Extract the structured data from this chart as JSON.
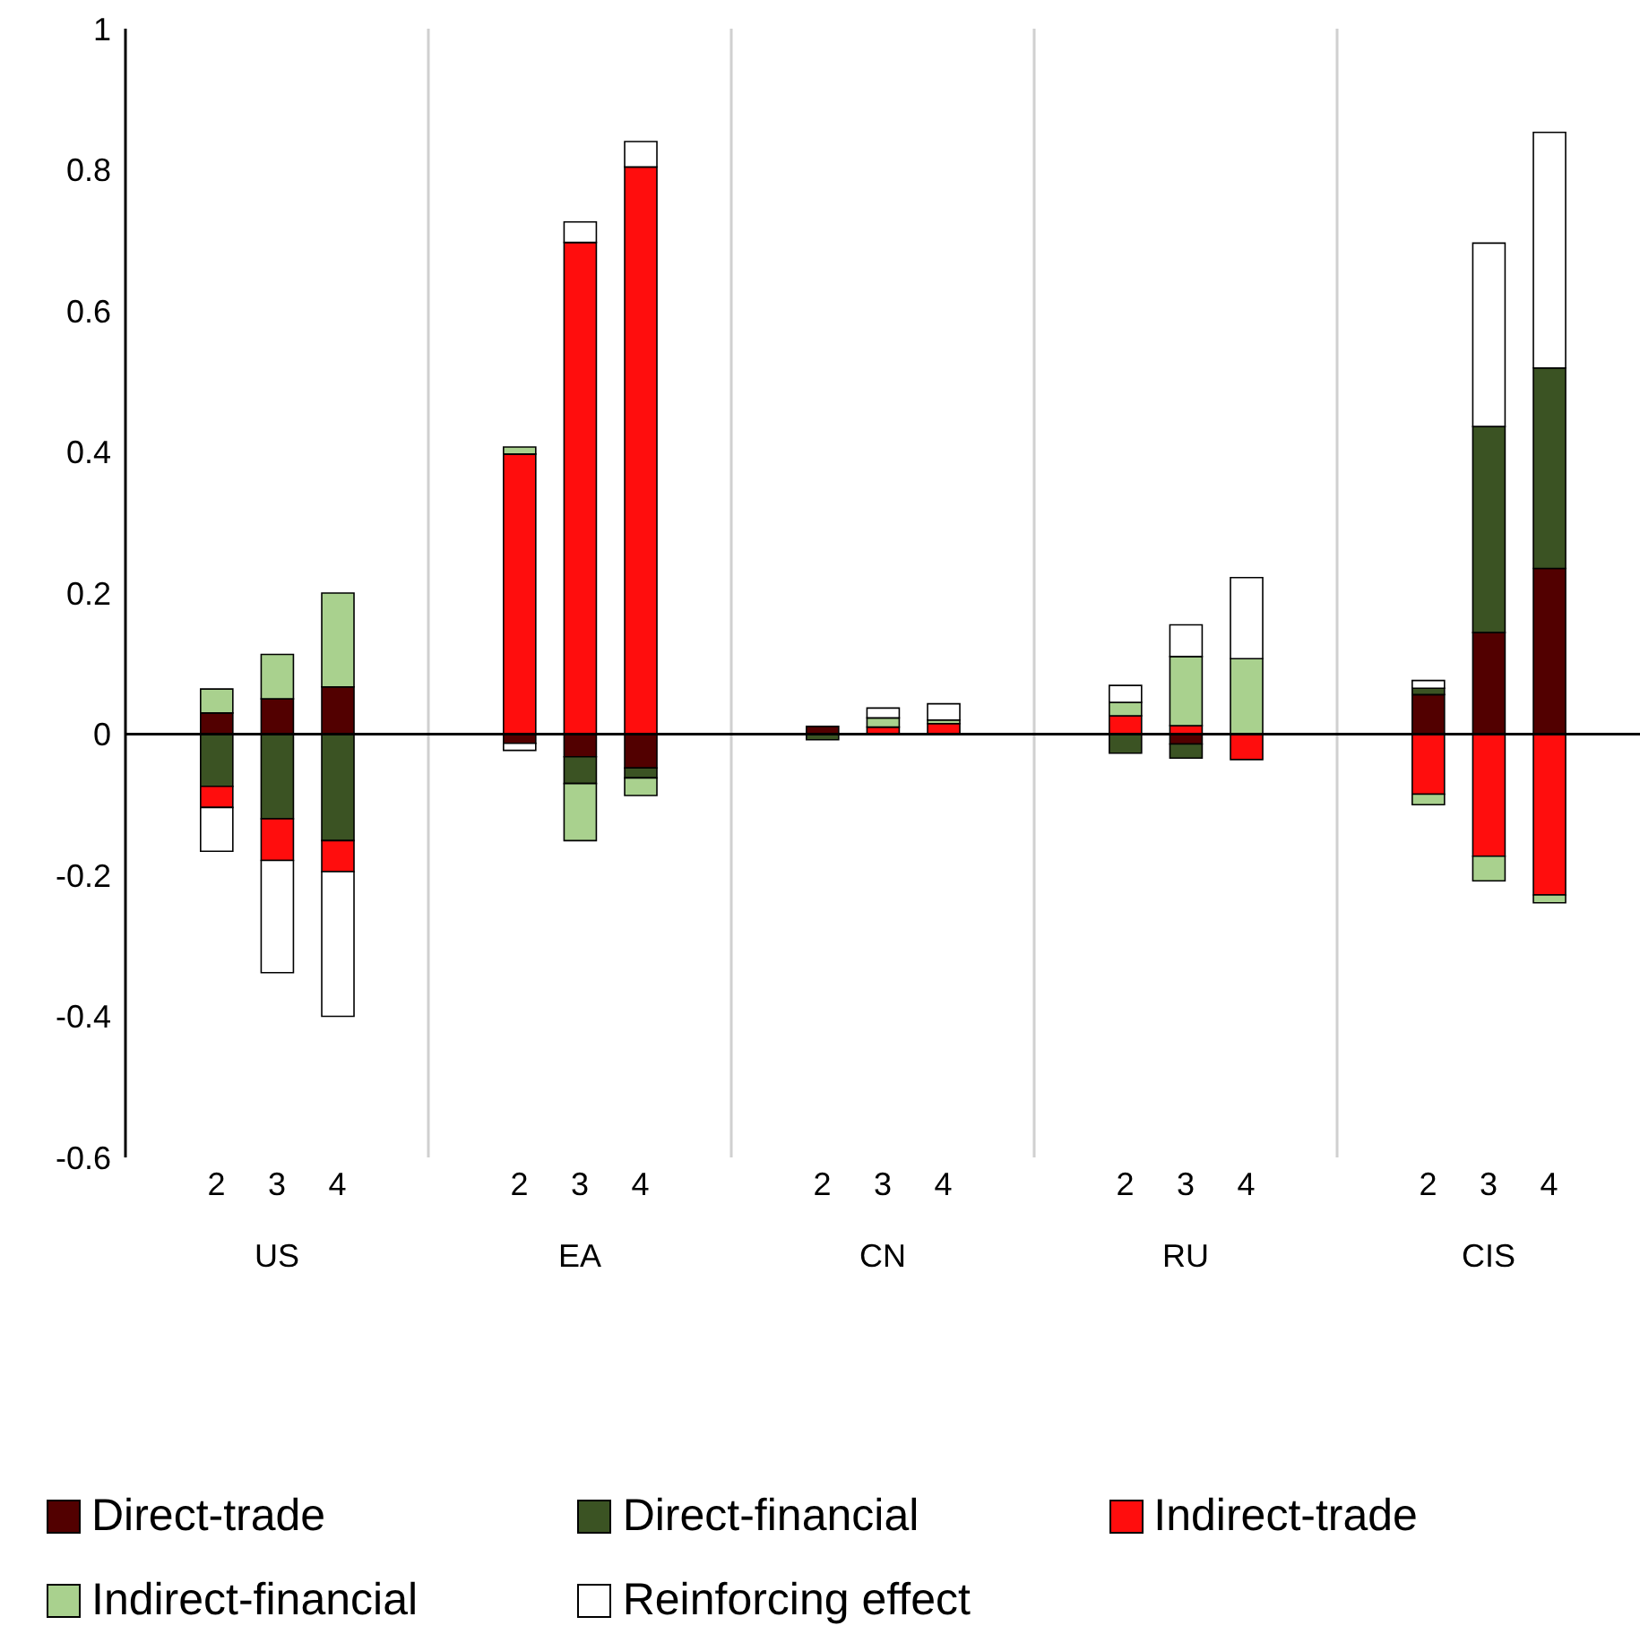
{
  "chart_data": {
    "type": "bar",
    "stacked": true,
    "categories": [
      null,
      "2",
      "3",
      "4",
      null,
      null,
      "2",
      "3",
      "4",
      null,
      null,
      "2",
      "3",
      "4",
      null,
      null,
      "2",
      "3",
      "4",
      null,
      null,
      "2",
      "3",
      "4",
      null
    ],
    "annotations": [
      "US",
      "EA",
      "CN",
      "RU",
      "CIS"
    ],
    "series": [
      {
        "name": "Direct-trade",
        "color": "#520000",
        "values": [
          null,
          0.03,
          0.05,
          0.067,
          null,
          null,
          -0.013,
          -0.032,
          -0.048,
          null,
          null,
          0.011,
          0,
          0,
          null,
          null,
          0,
          -0.014,
          0,
          null,
          null,
          0.056,
          0.144,
          0.235,
          null
        ]
      },
      {
        "name": "Direct-financial",
        "color": "#3b5323",
        "values": [
          null,
          -0.074,
          -0.12,
          -0.151,
          null,
          null,
          0,
          -0.038,
          -0.014,
          null,
          null,
          -0.008,
          0,
          0,
          null,
          null,
          -0.027,
          -0.02,
          0,
          null,
          null,
          0.009,
          0.292,
          0.284,
          null
        ]
      },
      {
        "name": "Indirect-trade",
        "color": "#ff0d0d",
        "values": [
          null,
          -0.03,
          -0.059,
          -0.044,
          null,
          null,
          0.397,
          0.697,
          0.804,
          null,
          null,
          0,
          0.01,
          0.015,
          null,
          null,
          0.026,
          0.012,
          -0.036,
          null,
          null,
          -0.085,
          -0.173,
          -0.228,
          null
        ]
      },
      {
        "name": "Indirect-financial",
        "color": "#a9d18e",
        "values": [
          null,
          0.034,
          0.063,
          0.133,
          null,
          null,
          0.01,
          -0.081,
          -0.025,
          null,
          null,
          0,
          0.013,
          0.005,
          null,
          null,
          0.019,
          0.098,
          0.107,
          null,
          null,
          -0.015,
          -0.035,
          -0.011,
          null
        ]
      },
      {
        "name": "Reinforcing effect",
        "color": "#ffffff",
        "values": [
          null,
          -0.062,
          -0.159,
          -0.205,
          null,
          null,
          -0.01,
          0.029,
          0.036,
          null,
          null,
          0,
          0.014,
          0.023,
          null,
          null,
          0.024,
          0.045,
          0.115,
          null,
          null,
          0.011,
          0.26,
          0.334,
          null
        ]
      }
    ],
    "ylim": [
      -0.6,
      1
    ],
    "yticks": [
      -0.6,
      -0.4,
      -0.2,
      0,
      0.2,
      0.4,
      0.6,
      0.8,
      1
    ],
    "ref_lines": [
      {
        "axis": "y",
        "value": 0,
        "color": "#000000"
      }
    ],
    "grid": "x",
    "legend": "bottom"
  }
}
